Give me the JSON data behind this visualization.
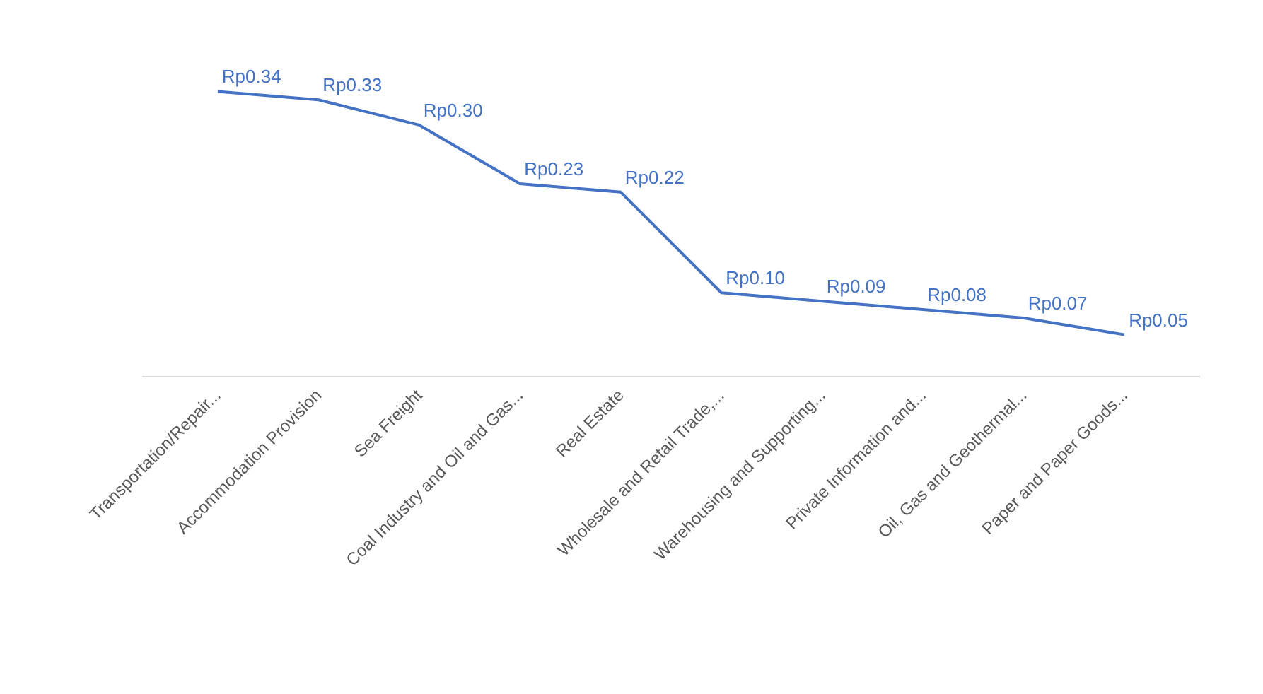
{
  "chart_data": {
    "type": "line",
    "categories": [
      "Transportation/Repair...",
      "Accommodation Provision",
      "Sea Freight",
      "Coal Industry and Oil and Gas...",
      "Real Estate",
      "Wholesale and Retail Trade,...",
      "Warehousing and Supporting...",
      "Private Information and...",
      "Oil, Gas and Geothermal...",
      "Paper and Paper Goods..."
    ],
    "series": [
      {
        "color": "#4472c4",
        "values": [
          0.34,
          0.33,
          0.3,
          0.23,
          0.22,
          0.1,
          0.09,
          0.08,
          0.07,
          0.05
        ],
        "value_labels": [
          "Rp0.34",
          "Rp0.33",
          "Rp0.30",
          "Rp0.23",
          "Rp0.22",
          "Rp0.10",
          "Rp0.09",
          "Rp0.08",
          "Rp0.07",
          "Rp0.05"
        ]
      }
    ],
    "grid": false,
    "line_style": "solid"
  }
}
